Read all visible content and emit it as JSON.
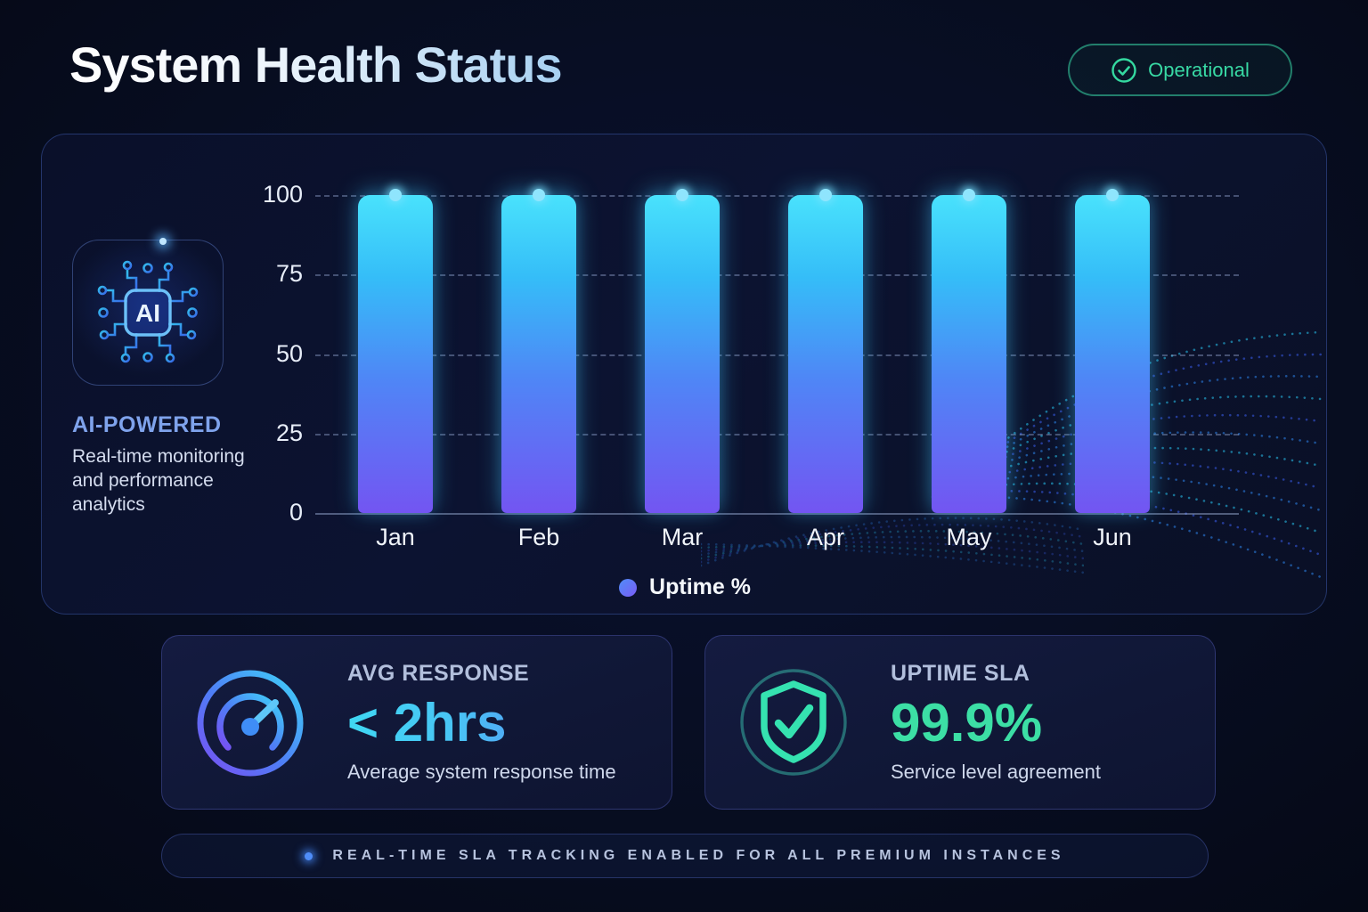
{
  "header": {
    "title": "System Health Status",
    "status": {
      "label": "Operational",
      "icon": "check-circle-icon",
      "color": "#34d399"
    }
  },
  "panel": {
    "ai_card": {
      "icon": "ai-chip-icon",
      "chip_text": "AI",
      "title": "AI-POWERED",
      "description": "Real-time monitoring and performance analytics",
      "title_color": "#7fa3ec"
    },
    "legend": {
      "label": "Uptime %",
      "dot_colors": [
        "#4f8df8",
        "#7a5cf5"
      ]
    }
  },
  "chart_data": {
    "type": "bar",
    "title": "",
    "xlabel": "",
    "ylabel": "",
    "categories": [
      "Jan",
      "Feb",
      "Mar",
      "Apr",
      "May",
      "Jun"
    ],
    "series": [
      {
        "name": "Uptime %",
        "values": [
          100,
          100,
          100,
          100,
          100,
          100
        ]
      }
    ],
    "yticks": [
      0,
      25,
      50,
      75,
      100
    ],
    "ylim": [
      0,
      100
    ],
    "grid": "horizontal-dashed",
    "legend_position": "bottom-center",
    "bar_gradient": [
      "#49e2fc",
      "#35bdf8",
      "#4f86f6",
      "#7355f2"
    ]
  },
  "stat_cards": [
    {
      "icon": "gauge-icon",
      "label": "AVG RESPONSE",
      "value": "< 2hrs",
      "description": "Average system response time",
      "value_colors": [
        "#3fd8f3",
        "#5b7df5"
      ]
    },
    {
      "icon": "shield-check-icon",
      "label": "UPTIME SLA",
      "value": "99.9%",
      "description": "Service level agreement",
      "value_color": "#3cdfa5"
    }
  ],
  "footer": {
    "dot_icon": "glow-dot-icon",
    "text": "REAL-TIME SLA TRACKING ENABLED FOR ALL PREMIUM INSTANCES"
  }
}
